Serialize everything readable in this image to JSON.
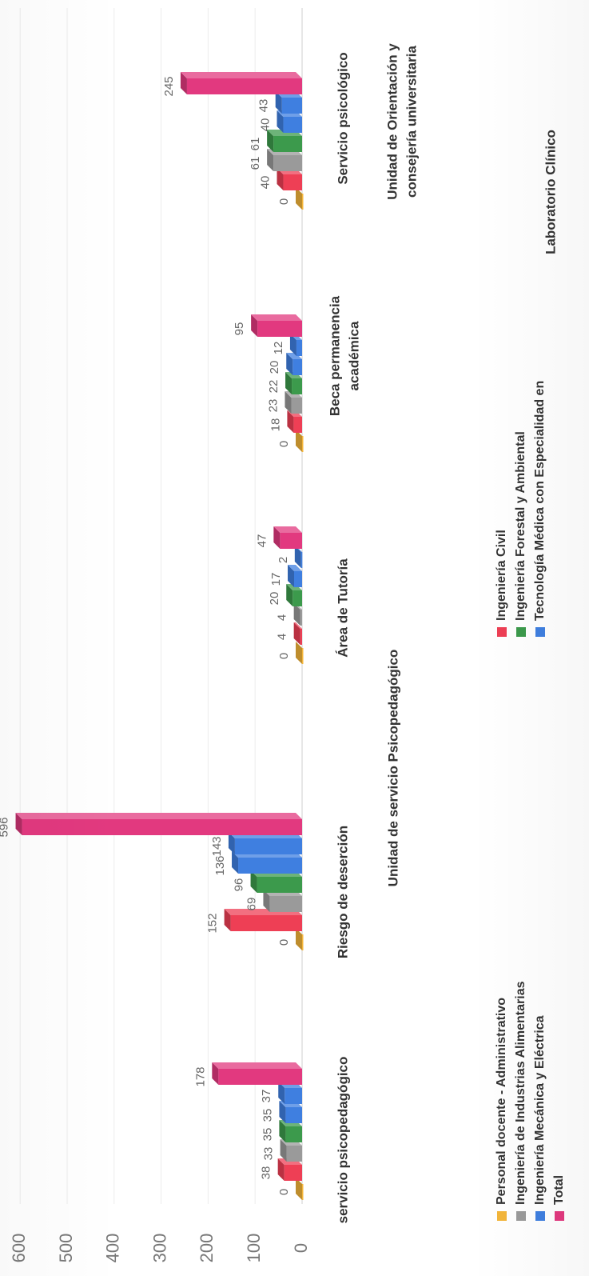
{
  "chart_data": {
    "type": "bar",
    "categories": [
      "servicio psicopedagógico",
      "Riesgo de deserción",
      "Área de Tutoría",
      "Beca permanencia académica",
      "Servicio psicológico"
    ],
    "group_titles": [
      "Unidad de servicio Psicopedagógico",
      "Unidad de Orientación y consejería universitaria",
      "Laboratorio Clínico"
    ],
    "series": [
      {
        "name": "Personal docente - Administrativo",
        "color": "#f3b53a",
        "values": [
          0,
          0,
          0,
          0,
          0
        ]
      },
      {
        "name": "Ingeniería Civil",
        "color": "#ee3f55",
        "values": [
          38,
          152,
          4,
          18,
          40
        ]
      },
      {
        "name": "Ingeniería de Industrias Alimentarias",
        "color": "#9a9a9a",
        "values": [
          33,
          69,
          4,
          23,
          61
        ]
      },
      {
        "name": "Ingeniería Forestal y  Ambiental",
        "color": "#3c9a4c",
        "values": [
          35,
          96,
          20,
          22,
          61
        ]
      },
      {
        "name": "Ingeniería Mecánica y    Eléctrica",
        "color": "#3f7fe0",
        "values": [
          35,
          136,
          17,
          20,
          40
        ]
      },
      {
        "name": "Tecnología Médica  con Especialidad  en",
        "color": "#3f7fe0",
        "values": [
          37,
          143,
          2,
          12,
          43
        ]
      },
      {
        "name": "Total",
        "color": "#e2397f",
        "values": [
          178,
          596,
          47,
          95,
          245
        ]
      }
    ],
    "legend_order": [
      0,
      2,
      4,
      6,
      1,
      3,
      5
    ],
    "ylim": [
      0,
      600
    ],
    "yticks": [
      "0",
      "100",
      "200",
      "300",
      "400",
      "500",
      "600"
    ],
    "grid": true,
    "legend_position": "bottom",
    "title": "",
    "xlabel": "",
    "ylabel": ""
  }
}
